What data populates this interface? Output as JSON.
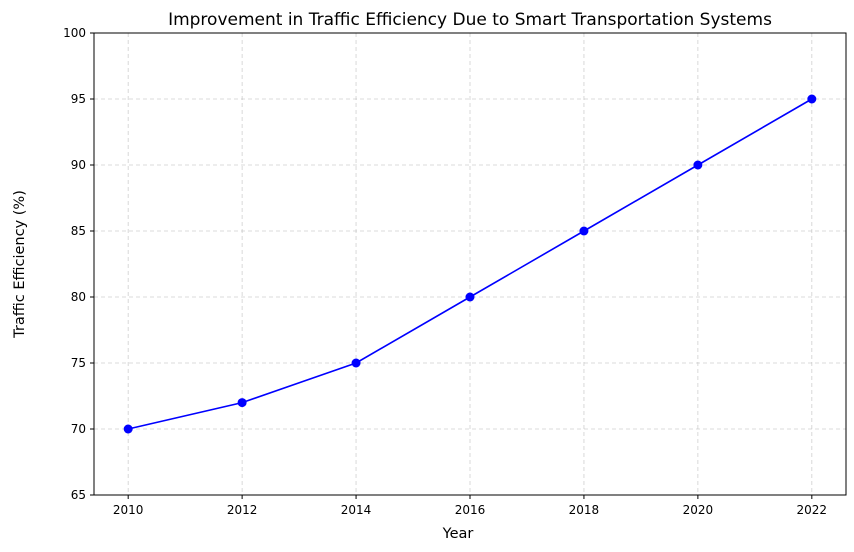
{
  "chart_data": {
    "type": "line",
    "title": "Improvement in Traffic Efficiency Due to Smart Transportation Systems",
    "xlabel": "Year",
    "ylabel": "Traffic Efficiency (%)",
    "x": [
      2010,
      2012,
      2014,
      2016,
      2018,
      2020,
      2022
    ],
    "series": [
      {
        "values": [
          70,
          72,
          75,
          80,
          85,
          90,
          95
        ],
        "color": "#0000ff",
        "marker": "circle"
      }
    ],
    "xlim": [
      2009.4,
      2022.6
    ],
    "ylim": [
      65,
      100
    ],
    "xticks": [
      2010,
      2012,
      2014,
      2016,
      2018,
      2020,
      2022
    ],
    "yticks": [
      65,
      70,
      75,
      80,
      85,
      90,
      95,
      100
    ],
    "grid": true
  }
}
